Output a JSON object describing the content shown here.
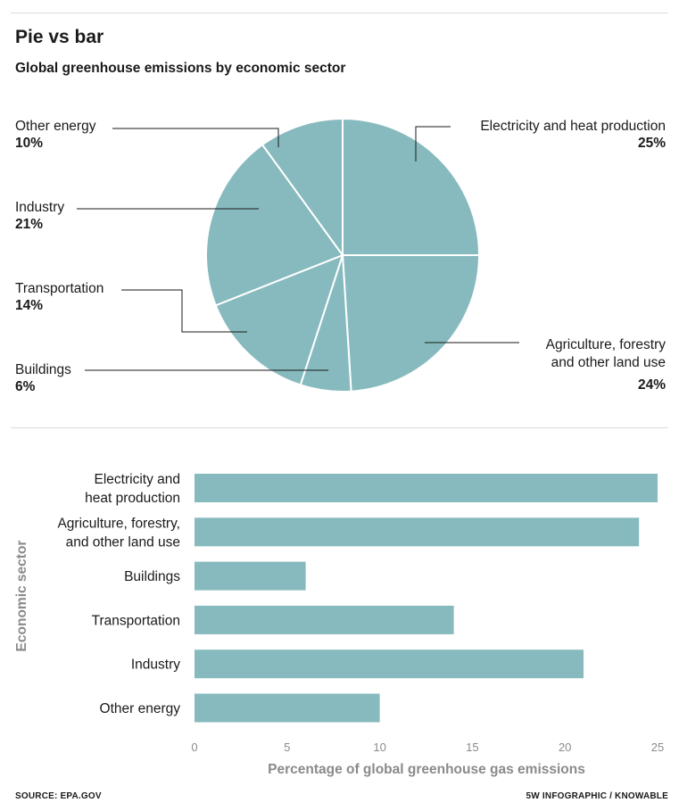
{
  "header": {
    "title": "Pie vs bar",
    "subtitle": "Global greenhouse emissions by economic sector"
  },
  "colors": {
    "fill": "#87babe",
    "text": "#1a1a1a",
    "axis_text": "#8a8a8a",
    "rule": "#dcdcdc"
  },
  "pie_labels": {
    "other_energy": {
      "name": "Other energy",
      "pct": "10%"
    },
    "industry": {
      "name": "Industry",
      "pct": "21%"
    },
    "transportation": {
      "name": "Transportation",
      "pct": "14%"
    },
    "buildings": {
      "name": "Buildings",
      "pct": "6%"
    },
    "electricity": {
      "name": "Electricity and heat production",
      "pct": "25%"
    },
    "agriculture": {
      "name_line1": "Agriculture, forestry",
      "name_line2": "and other land use",
      "pct": "24%"
    }
  },
  "chart_data": [
    {
      "type": "pie",
      "title": "Global greenhouse emissions by economic sector",
      "slices": [
        {
          "label": "Electricity and heat production",
          "value": 25
        },
        {
          "label": "Agriculture, forestry and other land use",
          "value": 24
        },
        {
          "label": "Buildings",
          "value": 6
        },
        {
          "label": "Transportation",
          "value": 14
        },
        {
          "label": "Industry",
          "value": 21
        },
        {
          "label": "Other energy",
          "value": 10
        }
      ]
    },
    {
      "type": "bar",
      "orientation": "horizontal",
      "categories": [
        [
          "Electricity and",
          "heat production"
        ],
        [
          "Agriculture, forestry,",
          "and other land use"
        ],
        [
          "Buildings"
        ],
        [
          "Transportation"
        ],
        [
          "Industry"
        ],
        [
          "Other energy"
        ]
      ],
      "values": [
        25,
        24,
        6,
        14,
        21,
        10
      ],
      "xlabel": "Percentage of global greenhouse gas emissions",
      "ylabel": "Economic sector",
      "xlim": [
        0,
        25
      ],
      "xticks": [
        0,
        5,
        10,
        15,
        20,
        25
      ],
      "grid": false
    }
  ],
  "footer": {
    "source": "SOURCE: EPA.GOV",
    "credit": "5W INFOGRAPHIC / KNOWABLE"
  }
}
